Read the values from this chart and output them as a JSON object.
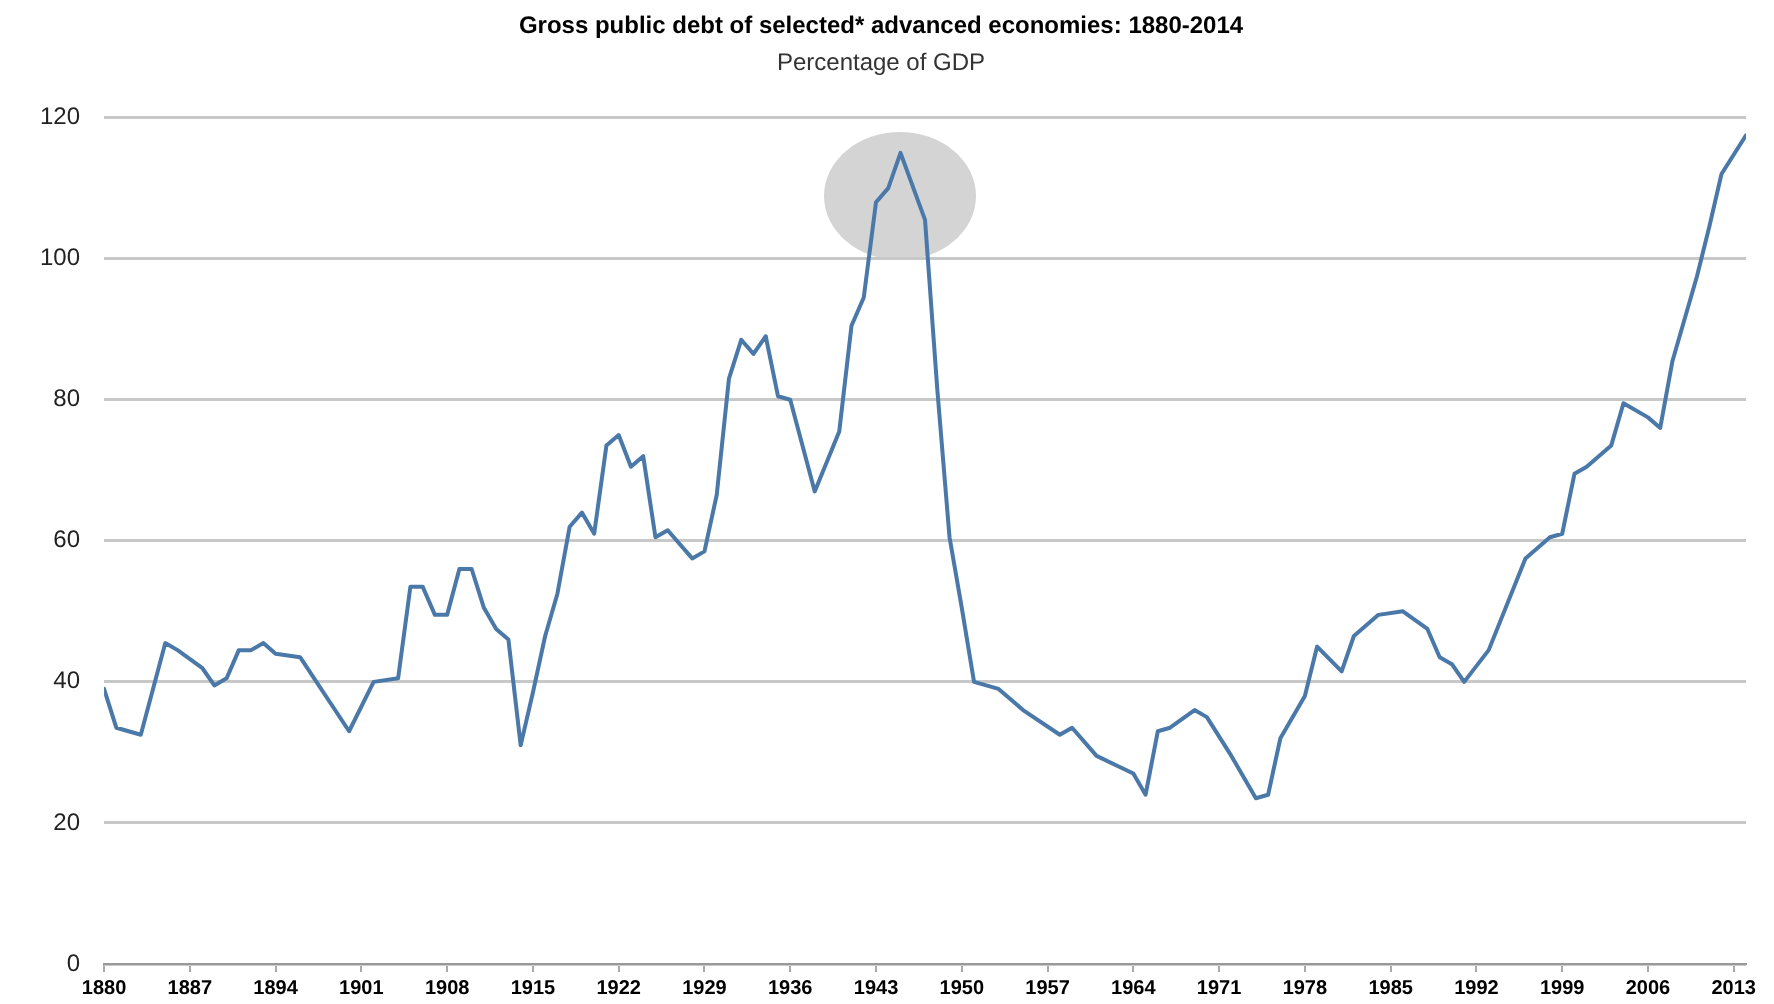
{
  "chart_data": {
    "type": "line",
    "title": "Gross public debt of selected* advanced economies: 1880-2014",
    "subtitle": "Percentage of GDP",
    "x": [
      1880,
      1881,
      1883,
      1885,
      1886,
      1888,
      1889,
      1890,
      1891,
      1892,
      1893,
      1894,
      1896,
      1900,
      1902,
      1904,
      1905,
      1906,
      1907,
      1908,
      1909,
      1910,
      1911,
      1912,
      1913,
      1914,
      1915,
      1916,
      1917,
      1918,
      1919,
      1920,
      1921,
      1922,
      1923,
      1924,
      1925,
      1926,
      1928,
      1929,
      1930,
      1931,
      1932,
      1933,
      1934,
      1935,
      1936,
      1938,
      1940,
      1941,
      1942,
      1943,
      1944,
      1945,
      1947,
      1948,
      1949,
      1950,
      1951,
      1953,
      1955,
      1958,
      1959,
      1961,
      1964,
      1965,
      1966,
      1967,
      1969,
      1970,
      1972,
      1974,
      1975,
      1976,
      1978,
      1979,
      1981,
      1982,
      1984,
      1986,
      1988,
      1989,
      1990,
      1991,
      1993,
      1996,
      1998,
      1999,
      2000,
      2001,
      2003,
      2004,
      2006,
      2007,
      2008,
      2010,
      2011,
      2012,
      2014
    ],
    "series": [
      {
        "color": "#4a78a8",
        "values": [
          39,
          33.5,
          32.5,
          45.5,
          44.5,
          42,
          39.5,
          40.5,
          44.5,
          44.5,
          45.5,
          44,
          43.5,
          33,
          40,
          40.5,
          53.5,
          53.5,
          49.5,
          49.5,
          56,
          56,
          50.5,
          47.5,
          46,
          31,
          38.5,
          46.5,
          52.5,
          62,
          64,
          61,
          73.5,
          75,
          70.5,
          72,
          60.5,
          61.5,
          57.5,
          58.5,
          66.5,
          83,
          88.5,
          86.5,
          89,
          80.5,
          80,
          67,
          75.5,
          90.5,
          94.5,
          108,
          110,
          115,
          105.5,
          81.5,
          60.5,
          50.5,
          40,
          39,
          36,
          32.5,
          33.5,
          29.5,
          27,
          24,
          33,
          33.5,
          36,
          35,
          29.5,
          23.5,
          24,
          32,
          38,
          45,
          41.5,
          46.5,
          49.5,
          50,
          47.5,
          43.5,
          42.5,
          40,
          44.5,
          57.5,
          60.5,
          61,
          69.5,
          70.5,
          73.5,
          79.5,
          77.5,
          76,
          85.5,
          97.5,
          104.5,
          112,
          117.5
        ]
      }
    ],
    "xlim": [
      1880,
      2014
    ],
    "xticks": [
      1880,
      1887,
      1894,
      1901,
      1908,
      1915,
      1922,
      1929,
      1936,
      1943,
      1950,
      1957,
      1964,
      1971,
      1978,
      1985,
      1992,
      1999,
      2006,
      2013
    ],
    "ylim": [
      0,
      120
    ],
    "yticks": [
      0,
      20,
      40,
      60,
      80,
      100,
      120
    ],
    "grid": "y",
    "legend": false,
    "marker": "none",
    "line_style": "solid"
  }
}
